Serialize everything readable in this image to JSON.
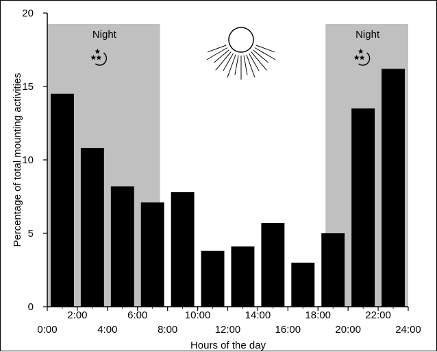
{
  "chart_data": {
    "type": "bar",
    "xlabel": "Hours of the day",
    "ylabel": "Percentage of total mounting activities",
    "ylim": [
      0,
      20
    ],
    "y_ticks": [
      0,
      5,
      10,
      15,
      20
    ],
    "x_tick_labels_upper": [
      "2:00",
      "6:00",
      "10:00",
      "14:00",
      "18:00",
      "22:00"
    ],
    "x_tick_labels_lower": [
      "0:00",
      "4:00",
      "8:00",
      "12:00",
      "16:00",
      "20:00",
      "24:00"
    ],
    "bin_width_hours": 2,
    "categories": [
      "0:00-2:00",
      "2:00-4:00",
      "4:00-6:00",
      "6:00-8:00",
      "8:00-10:00",
      "10:00-12:00",
      "12:00-14:00",
      "14:00-16:00",
      "16:00-18:00",
      "18:00-20:00",
      "20:00-22:00",
      "22:00-24:00"
    ],
    "values": [
      14.5,
      10.8,
      8.2,
      7.1,
      7.8,
      3.8,
      4.1,
      5.7,
      3.0,
      5.0,
      13.5,
      16.2
    ],
    "bar_color": "#000000",
    "shaded_regions": [
      {
        "label": "Night",
        "from_hour": 0,
        "to_hour": 7.5,
        "color": "#c0c0c0"
      },
      {
        "label": "Night",
        "from_hour": 18.5,
        "to_hour": 24,
        "color": "#c0c0c0"
      }
    ],
    "icons": [
      "moon-stars-icon",
      "sun-icon"
    ],
    "grid": false
  }
}
